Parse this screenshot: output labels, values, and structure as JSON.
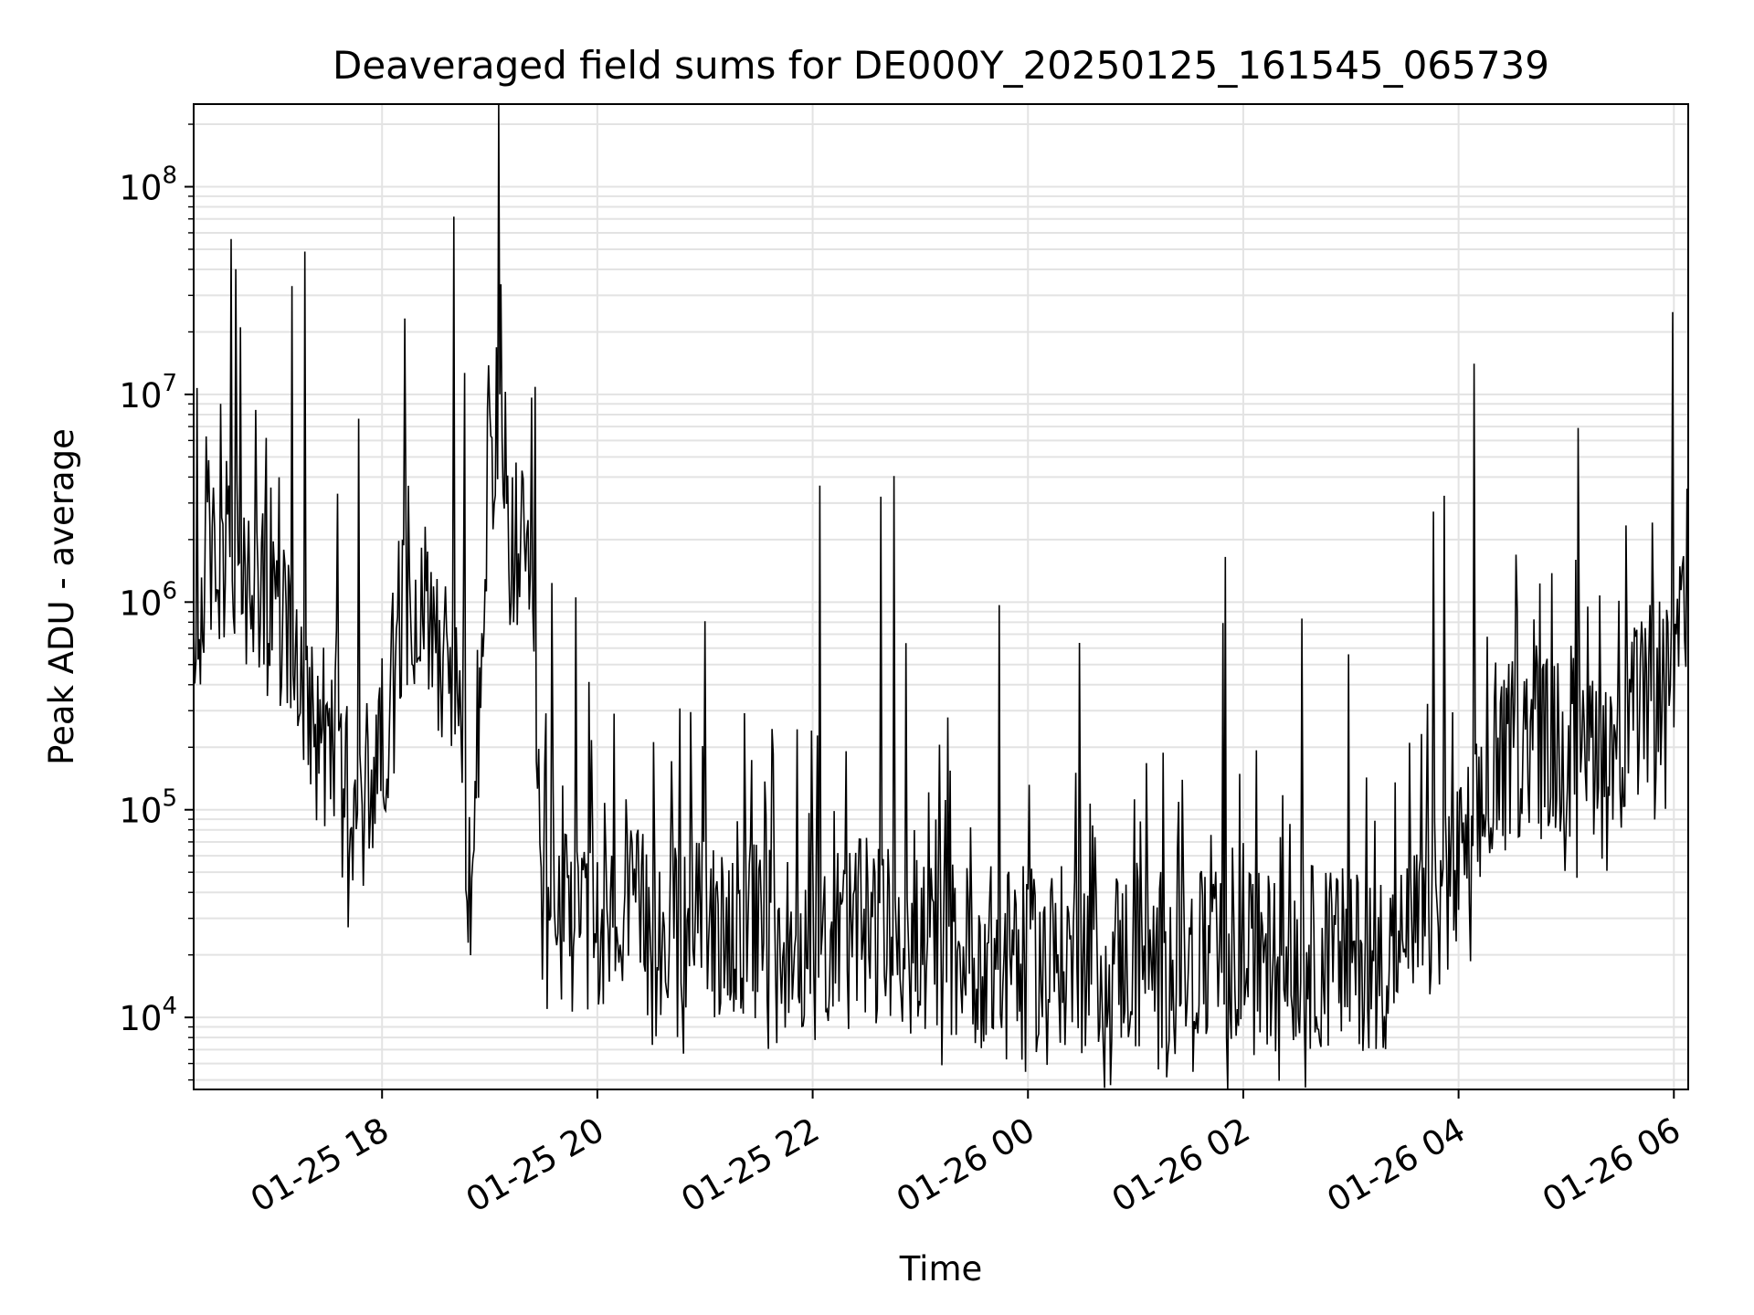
{
  "chart_data": {
    "type": "line",
    "title": "Deaveraged field sums for DE000Y_20250125_161545_065739",
    "xlabel": "Time",
    "ylabel": "Peak ADU - average",
    "xscale": "time",
    "yscale": "log",
    "grid": true,
    "x_tick_labels": [
      "01-25 18",
      "01-25 20",
      "01-25 22",
      "01-26 00",
      "01-26 02",
      "01-26 04",
      "01-26 06"
    ],
    "x_tick_times": [
      "2025-01-25T18:00",
      "2025-01-25T20:00",
      "2025-01-25T22:00",
      "2025-01-26T00:00",
      "2025-01-26T02:00",
      "2025-01-26T04:00",
      "2025-01-26T06:00"
    ],
    "xlim": [
      "2025-01-25T16:15",
      "2025-01-26T06:08"
    ],
    "ylim": [
      4500,
      250000000
    ],
    "y_tick_values": [
      10000,
      100000,
      1000000,
      10000000,
      100000000
    ],
    "y_tick_labels": [
      {
        "base": "10",
        "exp": "4"
      },
      {
        "base": "10",
        "exp": "5"
      },
      {
        "base": "10",
        "exp": "6"
      },
      {
        "base": "10",
        "exp": "7"
      },
      {
        "base": "10",
        "exp": "8"
      }
    ],
    "series": [
      {
        "color": "#000000",
        "x": [
          "2025-01-25T16:15",
          "2025-01-25T16:20",
          "2025-01-25T16:30",
          "2025-01-25T16:45",
          "2025-01-25T17:00",
          "2025-01-25T17:15",
          "2025-01-25T17:30",
          "2025-01-25T17:45",
          "2025-01-25T18:00",
          "2025-01-25T18:10",
          "2025-01-25T18:20",
          "2025-01-25T18:30",
          "2025-01-25T18:40",
          "2025-01-25T18:50",
          "2025-01-25T18:55",
          "2025-01-25T19:00",
          "2025-01-25T19:05",
          "2025-01-25T19:10",
          "2025-01-25T19:20",
          "2025-01-25T19:30",
          "2025-01-25T19:40",
          "2025-01-25T19:50",
          "2025-01-25T20:00",
          "2025-01-25T20:30",
          "2025-01-25T21:00",
          "2025-01-25T21:30",
          "2025-01-25T22:00",
          "2025-01-25T22:30",
          "2025-01-25T23:00",
          "2025-01-25T23:30",
          "2025-01-26T00:00",
          "2025-01-26T00:10",
          "2025-01-26T00:30",
          "2025-01-26T01:00",
          "2025-01-26T01:30",
          "2025-01-26T02:00",
          "2025-01-26T02:30",
          "2025-01-26T03:00",
          "2025-01-26T03:30",
          "2025-01-26T04:00",
          "2025-01-26T04:30",
          "2025-01-26T05:00",
          "2025-01-26T05:30",
          "2025-01-26T06:00",
          "2025-01-26T06:08"
        ],
        "values": [
          300000,
          1200000,
          1500000,
          1100000,
          900000,
          500000,
          200000,
          90000,
          200000,
          800000,
          1200000,
          700000,
          500000,
          30000,
          400000,
          8000000,
          5000000,
          2000000,
          1500000,
          30000,
          28000,
          27000,
          30000,
          28000,
          27000,
          26000,
          24000,
          26000,
          22000,
          20000,
          19000,
          19000,
          20000,
          19000,
          18000,
          18000,
          20000,
          19000,
          20000,
          50000,
          200000,
          200000,
          220000,
          500000,
          700000
        ]
      }
    ]
  }
}
